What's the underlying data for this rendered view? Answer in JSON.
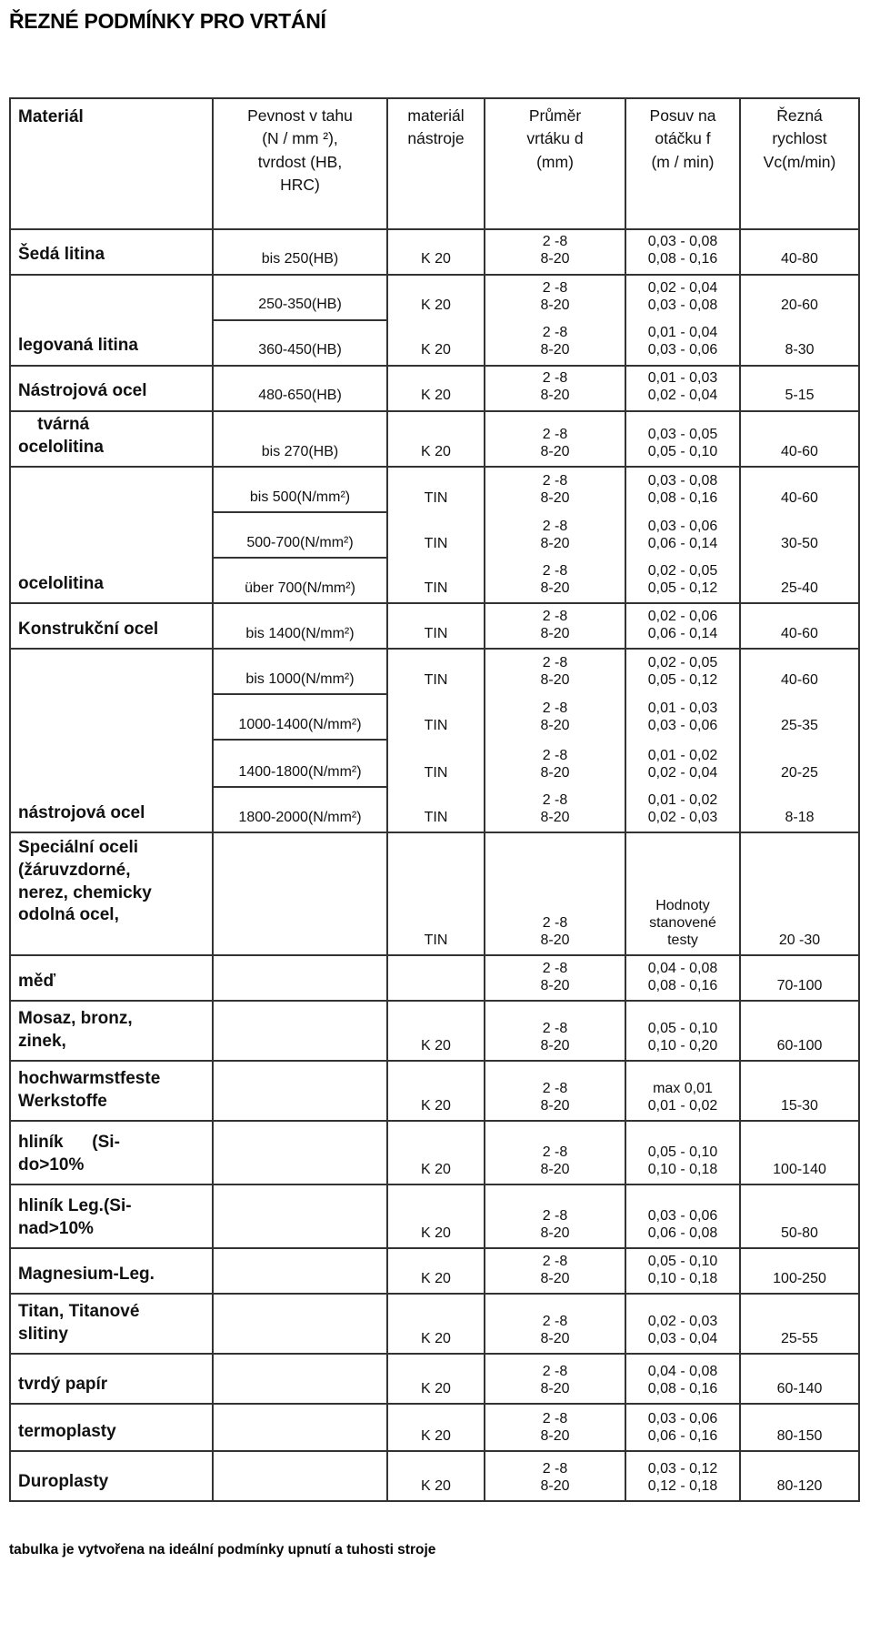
{
  "title": "ŘEZNÉ PODMÍNKY PRO VRTÁNÍ",
  "footnote": "tabulka je vytvořena na ideální podmínky upnutí a tuhosti stroje",
  "table": {
    "headers": [
      "Materiál",
      "Pevnost v tahu\n(N / mm ²),\ntvrdost (HB,\nHRC)",
      "materiál\nnástroje",
      "Průměr\nvrtáku d\n(mm)",
      "Posuv na\notáčku f\n(m / min)",
      "Řezná\nrychlost\nVc(m/min)"
    ],
    "groups": [
      {
        "material": "Šedá litina",
        "rows": [
          {
            "pevnost": "bis 250(HB)",
            "nastroj": "K 20",
            "prumer": "2 -8\n8-20",
            "posuv": "0,03 - 0,08\n0,08 - 0,16",
            "rychlost": "40-80"
          }
        ]
      },
      {
        "material": "legovaná litina",
        "rows": [
          {
            "pevnost": "250-350(HB)",
            "nastroj": "K 20",
            "prumer": "2 -8\n8-20",
            "posuv": "0,02 - 0,04\n0,03 - 0,08",
            "rychlost": "20-60"
          },
          {
            "pevnost": "360-450(HB)",
            "nastroj": "K 20",
            "prumer": "2 -8\n8-20",
            "posuv": "0,01 - 0,04\n0,03 - 0,06",
            "rychlost": "8-30"
          }
        ]
      },
      {
        "material": "Nástrojová ocel",
        "rows": [
          {
            "pevnost": "480-650(HB)",
            "nastroj": "K 20",
            "prumer": "2 -8\n8-20",
            "posuv": "0,01 - 0,03\n0,02 - 0,04",
            "rychlost": "5-15"
          }
        ]
      },
      {
        "material": "    tvárná\nocelolitina",
        "rows": [
          {
            "pevnost": "bis 270(HB)",
            "nastroj": "K 20",
            "prumer": "2 -8\n8-20",
            "posuv": "0,03 - 0,05\n0,05 - 0,10",
            "rychlost": "40-60"
          }
        ]
      },
      {
        "material": "ocelolitina",
        "rows": [
          {
            "pevnost": "bis 500(N/mm²)",
            "nastroj": "TIN",
            "prumer": "2 -8\n8-20",
            "posuv": "0,03 - 0,08\n0,08 - 0,16",
            "rychlost": "40-60"
          },
          {
            "pevnost": "500-700(N/mm²)",
            "nastroj": "TIN",
            "prumer": "2 -8\n8-20",
            "posuv": "0,03 - 0,06\n0,06 - 0,14",
            "rychlost": "30-50"
          },
          {
            "pevnost": "über 700(N/mm²)",
            "nastroj": "TIN",
            "prumer": "2 -8\n8-20",
            "posuv": "0,02 - 0,05\n0,05 - 0,12",
            "rychlost": "25-40"
          }
        ]
      },
      {
        "material": "Konstrukční ocel",
        "rows": [
          {
            "pevnost": "bis 1400(N/mm²)",
            "nastroj": "TIN",
            "prumer": "2 -8\n8-20",
            "posuv": "0,02 - 0,06\n0,06 - 0,14",
            "rychlost": "40-60"
          }
        ]
      },
      {
        "material": "nástrojová ocel",
        "rows": [
          {
            "pevnost": "bis 1000(N/mm²)",
            "nastroj": "TIN",
            "prumer": "2 -8\n8-20",
            "posuv": "0,02 - 0,05\n0,05 - 0,12",
            "rychlost": "40-60"
          },
          {
            "pevnost": "1000-1400(N/mm²)",
            "nastroj": "TIN",
            "prumer": "2 -8\n8-20",
            "posuv": "0,01 - 0,03\n0,03 - 0,06",
            "rychlost": "25-35"
          },
          {
            "pevnost": "1400-1800(N/mm²)",
            "nastroj": "TIN",
            "prumer": "2 -8\n8-20",
            "posuv": "0,01 - 0,02\n0,02 - 0,04",
            "rychlost": "20-25"
          },
          {
            "pevnost": "1800-2000(N/mm²)",
            "nastroj": "TIN",
            "prumer": "2 -8\n8-20",
            "posuv": "0,01 - 0,02\n0,02 - 0,03",
            "rychlost": "8-18"
          }
        ]
      },
      {
        "material": "Speciální oceli\n(žáruvzdorné,\nnerez, chemicky\nodolná ocel,",
        "rows": [
          {
            "pevnost": "",
            "nastroj": "TIN",
            "prumer": "2 -8\n8-20",
            "posuv": "Hodnoty\nstanovené\ntesty",
            "rychlost": "20 -30"
          }
        ]
      },
      {
        "material": "měď",
        "rows": [
          {
            "pevnost": "",
            "nastroj": "",
            "prumer": "2 -8\n8-20",
            "posuv": "0,04 - 0,08\n0,08 - 0,16",
            "rychlost": "70-100"
          }
        ]
      },
      {
        "material": "Mosaz, bronz,\nzinek,",
        "rows": [
          {
            "pevnost": "",
            "nastroj": "K 20",
            "prumer": "2 -8\n8-20",
            "posuv": "0,05 - 0,10\n0,10 - 0,20",
            "rychlost": "60-100"
          }
        ]
      },
      {
        "material": "hochwarmstfeste\nWerkstoffe",
        "rows": [
          {
            "pevnost": "",
            "nastroj": "K 20",
            "prumer": "2 -8\n8-20",
            "posuv": "max  0,01\n0,01 - 0,02",
            "rychlost": "15-30"
          }
        ]
      },
      {
        "material": "hliník      (Si-\ndo>10%",
        "rows": [
          {
            "pevnost": "",
            "nastroj": "K 20",
            "prumer": "2 -8\n8-20",
            "posuv": "0,05 - 0,10\n0,10 - 0,18",
            "rychlost": "100-140"
          }
        ]
      },
      {
        "material": "hliník Leg.(Si-\nnad>10%",
        "rows": [
          {
            "pevnost": "",
            "nastroj": "K 20",
            "prumer": "2 -8\n8-20",
            "posuv": "0,03 - 0,06\n0,06 - 0,08",
            "rychlost": "50-80"
          }
        ]
      },
      {
        "material": "Magnesium-Leg.",
        "rows": [
          {
            "pevnost": "",
            "nastroj": "K 20",
            "prumer": "2 -8\n8-20",
            "posuv": "0,05 - 0,10\n0,10 - 0,18",
            "rychlost": "100-250"
          }
        ]
      },
      {
        "material": "Titan, Titanové\nslitiny",
        "rows": [
          {
            "pevnost": "",
            "nastroj": "K 20",
            "prumer": "2 -8\n8-20",
            "posuv": "0,02 - 0,03\n0,03 - 0,04",
            "rychlost": "25-55"
          }
        ]
      },
      {
        "material": "tvrdý papír",
        "rows": [
          {
            "pevnost": "",
            "nastroj": "K 20",
            "prumer": "2 -8\n8-20",
            "posuv": "0,04 - 0,08\n0,08 - 0,16",
            "rychlost": "60-140"
          }
        ]
      },
      {
        "material": "termoplasty",
        "rows": [
          {
            "pevnost": "",
            "nastroj": "K 20",
            "prumer": "2 -8\n8-20",
            "posuv": "0,03 - 0,06\n0,06 - 0,16",
            "rychlost": "80-150"
          }
        ]
      },
      {
        "material": "Duroplasty",
        "rows": [
          {
            "pevnost": "",
            "nastroj": "K 20",
            "prumer": "2 -8\n8-20",
            "posuv": "0,03 - 0,12\n0,12 - 0,18",
            "rychlost": "80-120"
          }
        ]
      }
    ]
  }
}
